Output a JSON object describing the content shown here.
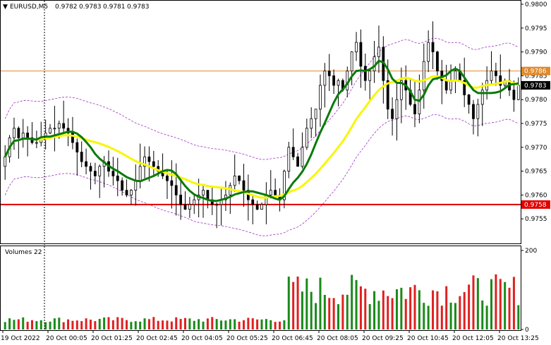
{
  "header": {
    "symbol": "EURUSD,M5",
    "open": "0.9782",
    "high": "0.9783",
    "low": "0.9781",
    "close": "0.9783",
    "arrow": "▼"
  },
  "volumes_label": "Volumes 22",
  "colors": {
    "candle": "#000000",
    "ma_fast": "#0a7a0a",
    "ma_slow": "#f7f700",
    "bands": "#a030c0",
    "orange_line": "#e08a2a",
    "red_line": "#e00000",
    "vol_up": "#1a8a1a",
    "vol_down": "#e02020",
    "price_tag_red": "#e00000",
    "price_tag_orange": "#e08a2a",
    "price_tag_current": "#000000"
  },
  "chart_data": {
    "type": "candlestick",
    "price_axis": {
      "ylim": [
        0.975,
        0.98
      ],
      "ticks": [
        "0.9800",
        "0.9795",
        "0.9790",
        "0.9785",
        "0.9780",
        "0.9775",
        "0.9770",
        "0.9765",
        "0.9760",
        "0.9755"
      ]
    },
    "volume_axis": {
      "ylim": [
        0,
        200
      ],
      "ticks": [
        "200",
        "0"
      ]
    },
    "time_labels": [
      "19 Oct 2022",
      "20 Oct 00:05",
      "20 Oct 01:25",
      "20 Oct 02:45",
      "20 Oct 04:05",
      "20 Oct 05:25",
      "20 Oct 06:45",
      "20 Oct 08:05",
      "20 Oct 09:25",
      "20 Oct 10:45",
      "20 Oct 12:05",
      "20 Oct 13:25"
    ],
    "levels": [
      {
        "name": "resistance",
        "value": 0.9786,
        "label": "0.9786",
        "color": "#e08a2a"
      },
      {
        "name": "support",
        "value": 0.9758,
        "label": "0.9758",
        "color": "#e00000"
      },
      {
        "name": "current",
        "value": 0.9783,
        "label": "0.9783",
        "color": "#000000"
      }
    ],
    "close_path": [
      0.9768,
      0.9772,
      0.9774,
      0.9772,
      0.9773,
      0.9772,
      0.9771,
      0.9771,
      0.9772,
      0.9773,
      0.9774,
      0.9774,
      0.9775,
      0.9774,
      0.9773,
      0.9771,
      0.9769,
      0.9767,
      0.9766,
      0.9765,
      0.9764,
      0.9766,
      0.9767,
      0.9765,
      0.9764,
      0.9763,
      0.9761,
      0.976,
      0.9761,
      0.9763,
      0.9766,
      0.9768,
      0.9767,
      0.9766,
      0.9765,
      0.9764,
      0.9763,
      0.9762,
      0.976,
      0.9758,
      0.9757,
      0.9758,
      0.9759,
      0.976,
      0.9761,
      0.9759,
      0.9758,
      0.9758,
      0.9759,
      0.976,
      0.9762,
      0.9764,
      0.9763,
      0.9761,
      0.9759,
      0.9758,
      0.9757,
      0.9758,
      0.976,
      0.9761,
      0.976,
      0.9759,
      0.9765,
      0.977,
      0.9768,
      0.9766,
      0.977,
      0.9774,
      0.9776,
      0.9778,
      0.9783,
      0.9786,
      0.9785,
      0.9783,
      0.9784,
      0.9782,
      0.9786,
      0.979,
      0.9792,
      0.9787,
      0.9784,
      0.9786,
      0.9789,
      0.9791,
      0.9784,
      0.9778,
      0.9776,
      0.978,
      0.9784,
      0.9782,
      0.9779,
      0.9777,
      0.9782,
      0.9788,
      0.9792,
      0.979,
      0.9786,
      0.9784,
      0.9782,
      0.9784,
      0.9786,
      0.9784,
      0.9781,
      0.9779,
      0.9776,
      0.9779,
      0.9782,
      0.9784,
      0.9786,
      0.9785,
      0.9783,
      0.9784,
      0.9782,
      0.978,
      0.9783
    ]
  }
}
